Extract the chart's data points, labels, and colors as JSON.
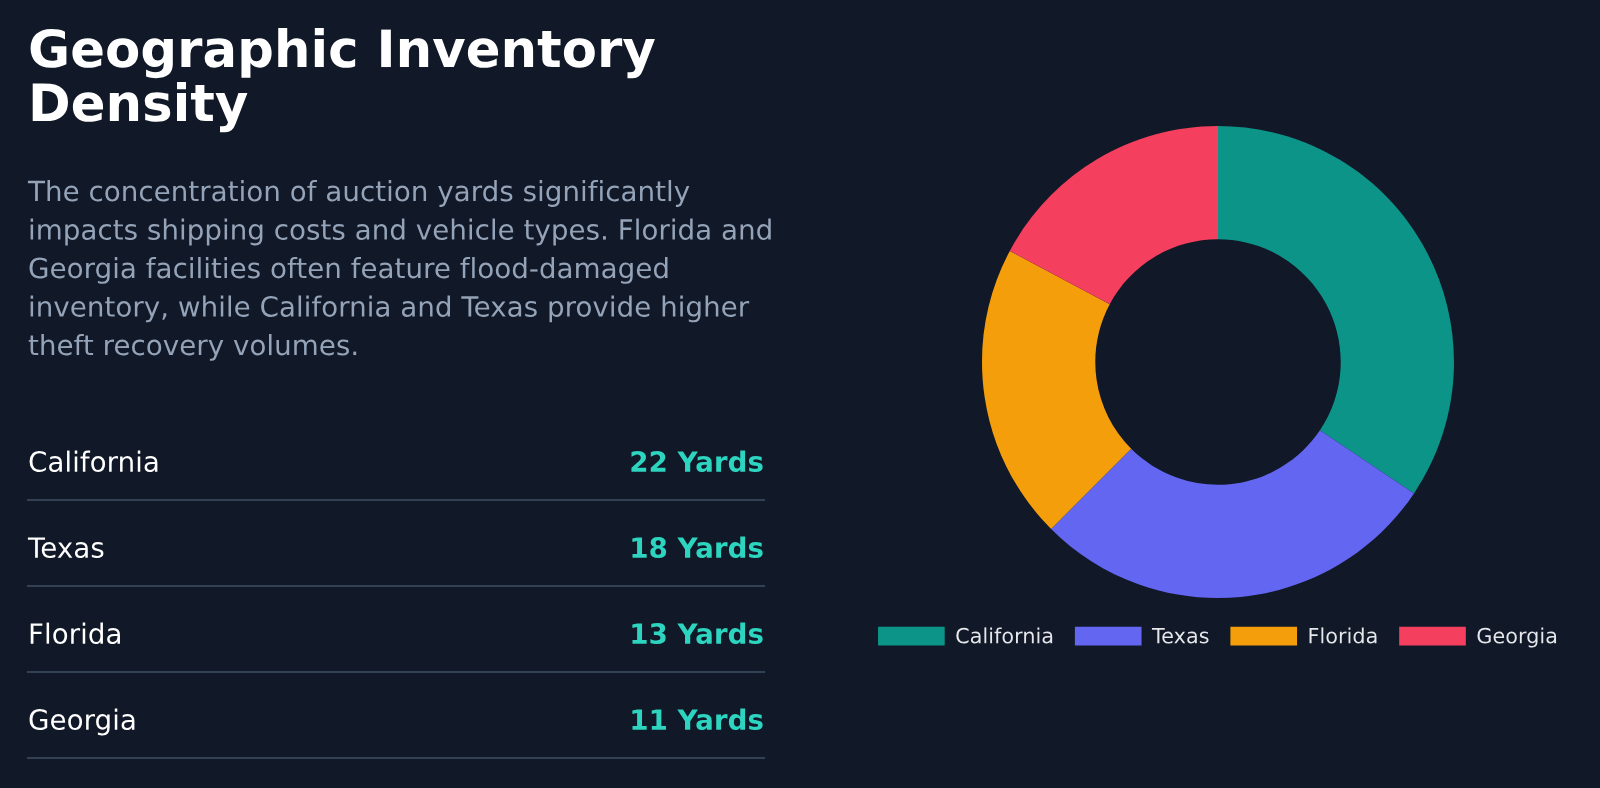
{
  "chart_data": {
    "type": "donut",
    "title": "Geographic Inventory\nDensity",
    "subtitle": "The concentration of auction yards significantly\nimpacts shipping costs and vehicle types. Florida and\nGeorgia facilities often feature flood-damaged\ninventory, while California and Texas provide higher\ntheft recovery volumes.",
    "categories": [
      "California",
      "Texas",
      "Florida",
      "Georgia"
    ],
    "values": [
      34.4,
      28.1,
      20.3,
      17.2
    ],
    "colors": [
      "#0d9488",
      "#6366f1",
      "#f59e0b",
      "#f43f5e"
    ],
    "annotations": [
      "22 Yards",
      "18 Yards",
      "13 Yards",
      "11 Yards"
    ],
    "legend": "bottom"
  }
}
